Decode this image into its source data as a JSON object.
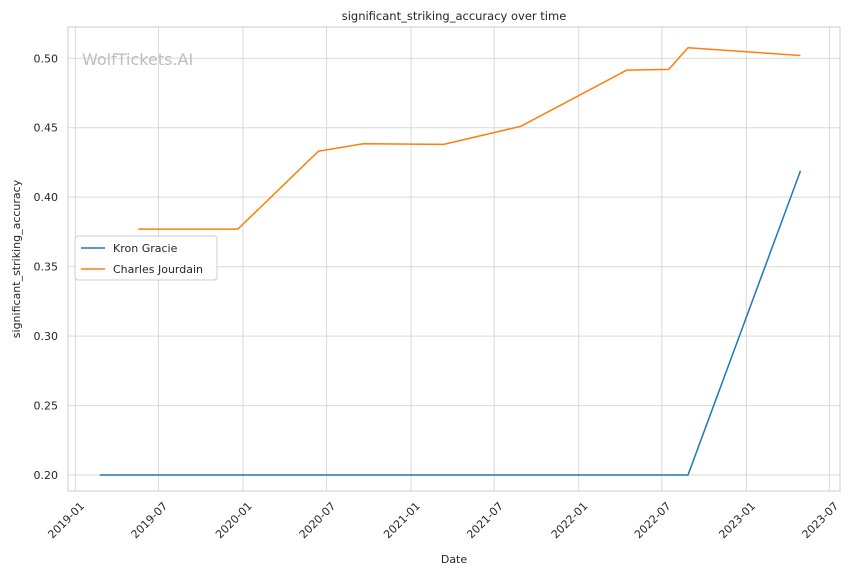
{
  "chart_data": {
    "type": "line",
    "title": "significant_striking_accuracy over time",
    "xlabel": "Date",
    "ylabel": "significant_striking_accuracy",
    "watermark": "WolfTickets.AI",
    "x_ticks": [
      "2019-01",
      "2019-07",
      "2020-01",
      "2020-07",
      "2021-01",
      "2021-07",
      "2022-01",
      "2022-07",
      "2023-01",
      "2023-07"
    ],
    "y_ticks": [
      "0.20",
      "0.25",
      "0.30",
      "0.35",
      "0.40",
      "0.45",
      "0.50"
    ],
    "xlim": [
      "2018-12-16",
      "2023-07-24"
    ],
    "ylim": [
      0.1885,
      0.5225
    ],
    "grid": true,
    "legend": "center-left",
    "series": [
      {
        "name": "Kron Gracie",
        "color": "#1f77b4",
        "points": [
          {
            "x": "2019-02-23",
            "y": 0.2
          },
          {
            "x": "2022-08-27",
            "y": 0.2
          },
          {
            "x": "2023-04-29",
            "y": 0.419
          }
        ]
      },
      {
        "name": "Charles Jourdain",
        "color": "#ff7f0e",
        "points": [
          {
            "x": "2019-05-18",
            "y": 0.377
          },
          {
            "x": "2019-12-21",
            "y": 0.377
          },
          {
            "x": "2020-06-13",
            "y": 0.433
          },
          {
            "x": "2020-09-19",
            "y": 0.4385
          },
          {
            "x": "2021-03-13",
            "y": 0.438
          },
          {
            "x": "2021-08-28",
            "y": 0.451
          },
          {
            "x": "2021-11-13",
            "y": 0.4645
          },
          {
            "x": "2022-04-16",
            "y": 0.4915
          },
          {
            "x": "2022-07-16",
            "y": 0.492
          },
          {
            "x": "2022-08-27",
            "y": 0.5075
          },
          {
            "x": "2023-04-29",
            "y": 0.502
          }
        ]
      }
    ]
  }
}
